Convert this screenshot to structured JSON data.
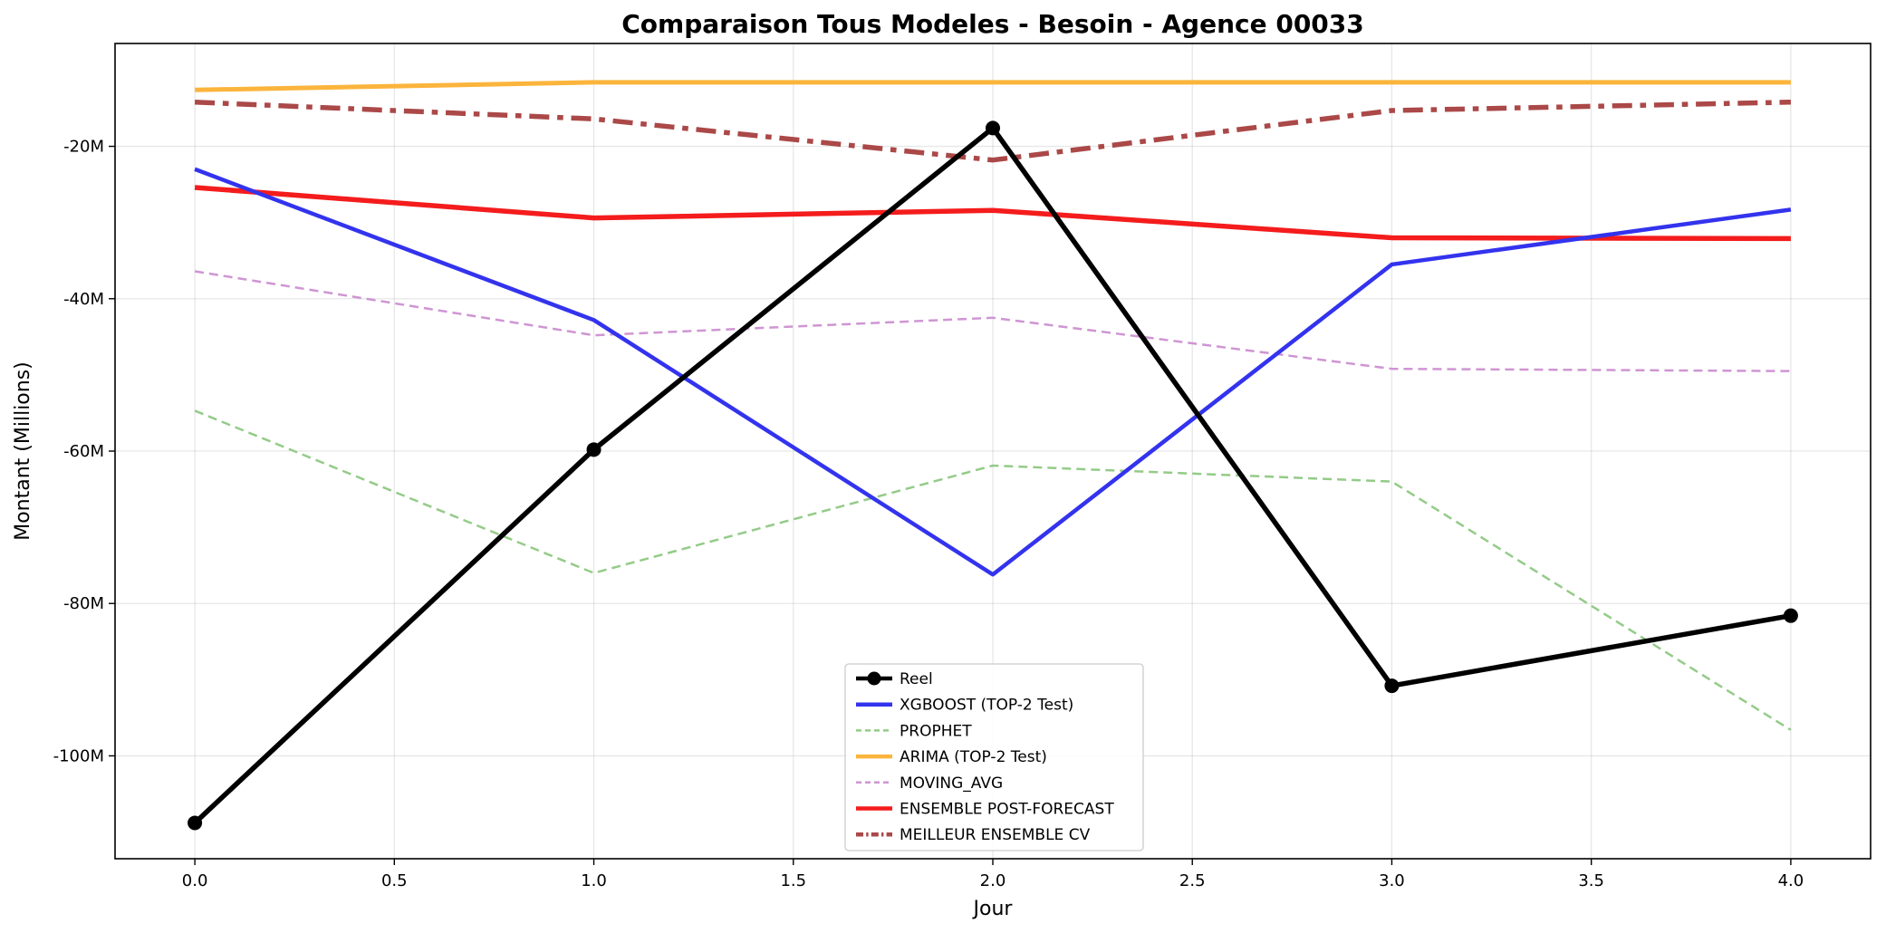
{
  "chart_data": {
    "type": "line",
    "title": "Comparaison Tous Modeles - Besoin - Agence 00033",
    "xlabel": "Jour",
    "ylabel": "Montant (Millions)",
    "xlim": [
      -0.2,
      4.2
    ],
    "ylim": [
      -113.5,
      -6.5
    ],
    "x_ticks": [
      0.0,
      0.5,
      1.0,
      1.5,
      2.0,
      2.5,
      3.0,
      3.5,
      4.0
    ],
    "x_tick_labels": [
      "0.0",
      "0.5",
      "1.0",
      "1.5",
      "2.0",
      "2.5",
      "3.0",
      "3.5",
      "4.0"
    ],
    "y_ticks": [
      -100,
      -80,
      -60,
      -40,
      -20
    ],
    "y_tick_labels": [
      "-100M",
      "-80M",
      "-60M",
      "-40M",
      "-20M"
    ],
    "grid": true,
    "legend_position": "bottom-center",
    "x": [
      0,
      1,
      2,
      3,
      4
    ],
    "series": [
      {
        "name": "Reel",
        "values": [
          -108.8,
          -59.8,
          -17.6,
          -90.8,
          -81.6
        ],
        "color": "#000000",
        "style": "solid",
        "marker": "circle",
        "width": 5.5
      },
      {
        "name": "XGBOOST (TOP-2 Test)",
        "values": [
          -23.0,
          -42.8,
          -76.2,
          -35.5,
          -28.3
        ],
        "color": "#3333ee",
        "style": "solid",
        "width": 4.5
      },
      {
        "name": "PROPHET",
        "values": [
          -54.7,
          -76.0,
          -61.9,
          -64.0,
          -96.6
        ],
        "color": "#94cb88",
        "style": "dashed",
        "width": 2.5
      },
      {
        "name": "ARIMA (TOP-2 Test)",
        "values": [
          -12.6,
          -11.6,
          -11.6,
          -11.6,
          -11.6
        ],
        "color": "#fbb43c",
        "style": "solid",
        "width": 5
      },
      {
        "name": "MOVING_AVG",
        "values": [
          -36.4,
          -44.8,
          -42.5,
          -49.2,
          -49.5
        ],
        "color": "#cf95d3",
        "style": "dashed",
        "width": 2.5
      },
      {
        "name": "ENSEMBLE POST-FORECAST",
        "values": [
          -25.4,
          -29.4,
          -28.4,
          -32.0,
          -32.1
        ],
        "color": "#f41c1c",
        "style": "solid",
        "width": 5.5
      },
      {
        "name": "MEILLEUR ENSEMBLE CV",
        "values": [
          -14.2,
          -16.4,
          -21.8,
          -15.3,
          -14.2
        ],
        "color": "#ab4848",
        "style": "dashdot",
        "width": 5.5
      }
    ]
  }
}
